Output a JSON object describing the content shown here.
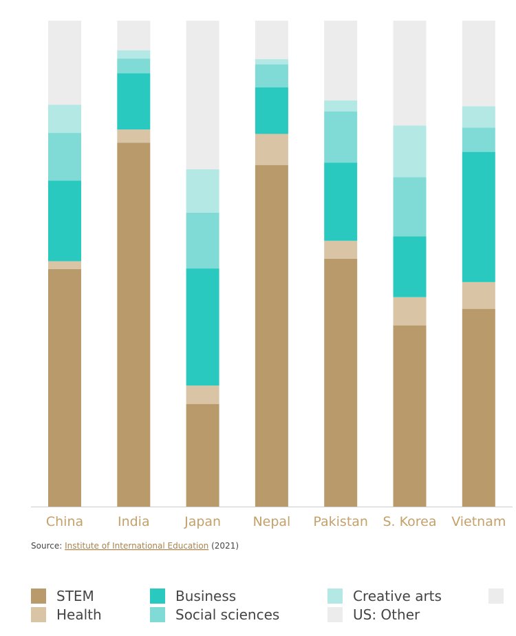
{
  "chart_data": {
    "type": "stacked-bar",
    "categories": [
      "China",
      "India",
      "Japan",
      "Nepal",
      "Pakistan",
      "S. Korea",
      "Vietnam"
    ],
    "series": [
      {
        "name": "STEM",
        "color": "#b99a6b",
        "values": [
          48.9,
          74.9,
          21.1,
          70.3,
          51,
          37.3,
          40.7
        ]
      },
      {
        "name": "Health",
        "color": "#d9c4a6",
        "values": [
          1.6,
          2.7,
          3.8,
          6.4,
          3.7,
          5.8,
          5.5
        ]
      },
      {
        "name": "Business",
        "color": "#2ac9c0",
        "values": [
          16.6,
          11.6,
          24.1,
          9.6,
          16.1,
          12.5,
          26.8
        ]
      },
      {
        "name": "Social sciences",
        "color": "#80dbd6",
        "values": [
          9.8,
          3,
          11.5,
          4.7,
          10.5,
          12.2,
          5
        ]
      },
      {
        "name": "Creative arts",
        "color": "#b3e8e5",
        "values": [
          5.8,
          1.7,
          8.9,
          1.1,
          2.3,
          10.6,
          4.4
        ]
      },
      {
        "name": "US: Other",
        "color": "#ececec",
        "values": [
          17.3,
          6.1,
          30.6,
          7.9,
          16.4,
          21.6,
          17.6
        ]
      }
    ],
    "ylim": [
      0,
      100
    ],
    "source": {
      "prefix": "Source:",
      "link": "Institute of International Education",
      "suffix": "(2021)"
    }
  }
}
